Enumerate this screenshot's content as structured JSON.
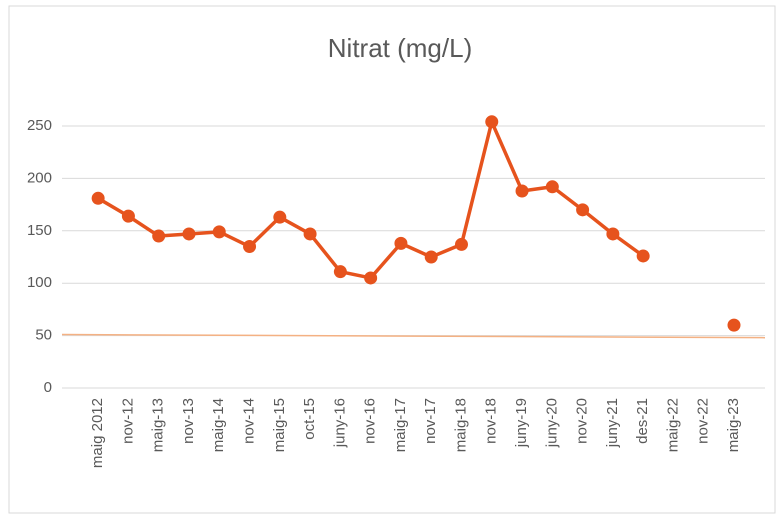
{
  "chart_data": {
    "type": "line",
    "title": "Nitrat (mg/L)",
    "categories": [
      "maig 2012",
      "nov-12",
      "maig-13",
      "nov-13",
      "maig-14",
      "nov-14",
      "maig-15",
      "oct-15",
      "juny-16",
      "nov-16",
      "maig-17",
      "nov-17",
      "maig-18",
      "nov-18",
      "juny-19",
      "juny-20",
      "nov-20",
      "juny-21",
      "des-21",
      "maig-22",
      "nov-22",
      "maig-23"
    ],
    "series": [
      {
        "color": "#e6531d",
        "values": [
          181,
          164,
          145,
          147,
          149,
          135,
          163,
          147,
          111,
          105,
          138,
          125,
          137,
          254,
          188,
          192,
          170,
          147,
          126,
          null,
          null,
          60
        ]
      }
    ],
    "reference_line": {
      "color": "#f4b183",
      "values": [
        51,
        48
      ]
    },
    "ylim": [
      0,
      250
    ],
    "yticks": [
      0,
      50,
      100,
      150,
      200,
      250
    ],
    "grid": true
  }
}
